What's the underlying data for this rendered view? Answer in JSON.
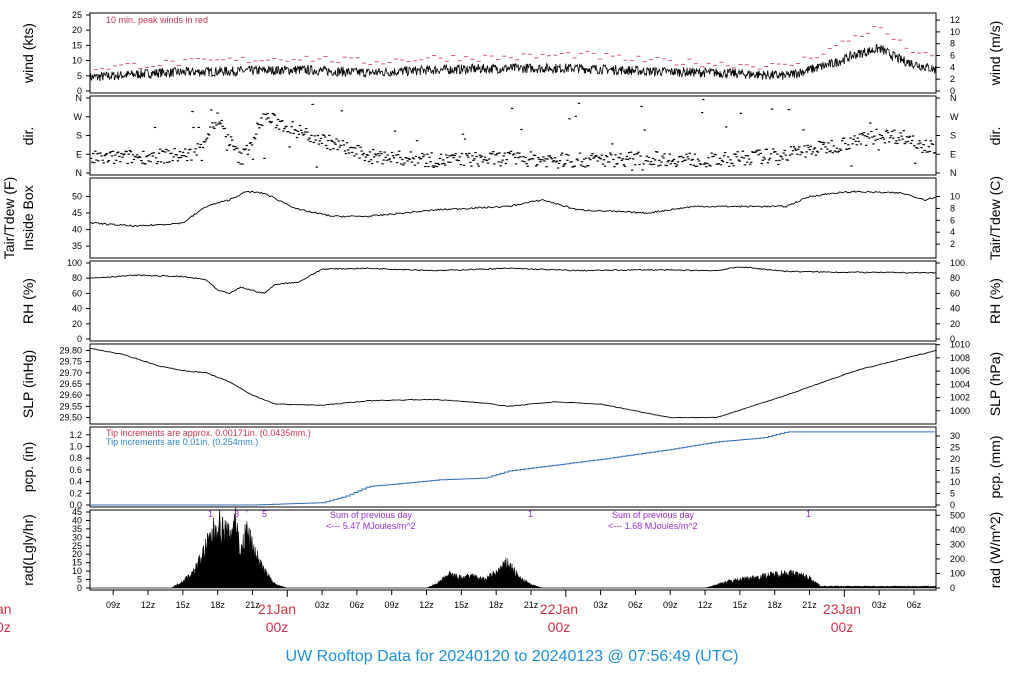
{
  "title": "UW Rooftop Data for 20240120  to  20240123 @ 07:56:49  (UTC)",
  "colors": {
    "peak": "#cc3355",
    "tip_old": "#cc3355",
    "tip_new": "#2e86c1",
    "rain_line": "#2e6fb8",
    "solar": "#9b30d0",
    "day": "#cc3344",
    "title": "#1e90d8"
  },
  "time_axis": {
    "ticks": [
      "09z",
      "12z",
      "15z",
      "18z",
      "21z",
      "03z",
      "06z",
      "09z",
      "12z",
      "15z",
      "18z",
      "21z",
      "03z",
      "06z",
      "09z",
      "12z",
      "15z",
      "18z",
      "21z",
      "03z",
      "06z"
    ],
    "days": [
      {
        "label": "21Jan",
        "sub": "00z"
      },
      {
        "label": "22Jan",
        "sub": "00z"
      },
      {
        "label": "23Jan",
        "sub": "00z"
      }
    ],
    "left_edge_fragments": [
      "an",
      "0z"
    ]
  },
  "panels": {
    "wind": {
      "left_label": "wind (kts)",
      "right_label": "wind (m/s)",
      "left_ticks": [
        "0",
        "5",
        "10",
        "15",
        "20",
        "25"
      ],
      "right_ticks": [
        "0",
        "2",
        "4",
        "6",
        "8",
        "10",
        "12"
      ],
      "note": "10 min. peak winds in red"
    },
    "dir": {
      "left_label": "dir.",
      "right_label": "dir.",
      "ticks": [
        "N",
        "E",
        "S",
        "W",
        "N"
      ]
    },
    "temp": {
      "left_label_1": "Tair/Tdew (F)",
      "left_label_2": "Inside Box",
      "right_label": "Tair/Tdew (C)",
      "left_ticks": [
        "35",
        "40",
        "45",
        "50"
      ],
      "right_ticks": [
        "2",
        "4",
        "6",
        "8",
        "10"
      ]
    },
    "rh": {
      "left_label": "RH (%)",
      "right_label": "RH (%)",
      "ticks": [
        "0",
        "20",
        "40",
        "60",
        "80",
        "100"
      ]
    },
    "slp": {
      "left_label": "SLP (inHg)",
      "right_label": "SLP (hPa)",
      "left_ticks": [
        "29.50",
        "29.55",
        "29.60",
        "29.65",
        "29.70",
        "29.75",
        "29.80"
      ],
      "right_ticks": [
        "1000",
        "1002",
        "1004",
        "1006",
        "1008",
        "1010"
      ]
    },
    "pcp": {
      "left_label": "pcp. (in)",
      "right_label": "pcp. (mm)",
      "left_ticks": [
        "0.0",
        "0.2",
        "0.4",
        "0.6",
        "0.8",
        "1.0",
        "1.2"
      ],
      "right_ticks": [
        "0",
        "5",
        "10",
        "15",
        "20",
        "25",
        "30"
      ],
      "note1": "Tip increments are approx. 0.00171in. (0.0435mm.)",
      "note2": "Tip increments are 0.01in. (0.254mm.)"
    },
    "rad": {
      "left_label": "rad(Lgly/hr)",
      "right_label": "rad (W/m^2)",
      "left_ticks": [
        "0",
        "5",
        "10",
        "15",
        "20",
        "25",
        "30",
        "35",
        "40",
        "45"
      ],
      "right_ticks": [
        "0",
        "100",
        "200",
        "300",
        "400",
        "500"
      ],
      "day_sum_title": "Sum of previous day",
      "day_sums": [
        "<--- 5.47 MJoules/m^2",
        "<--- 1.68 MJoules/m^2"
      ],
      "marks": [
        "1",
        "'",
        "3",
        "'",
        "5",
        "1",
        "1"
      ]
    }
  },
  "chart_data": {
    "type": "line",
    "x_unit": "hours since 20240120 07z",
    "x_range": [
      0,
      72.9
    ],
    "series": [
      {
        "name": "wind",
        "unit": "kts",
        "ylim": [
          0,
          25
        ],
        "x": [
          0,
          6,
          12,
          18,
          24,
          30,
          36,
          42,
          48,
          54,
          60,
          64,
          66,
          68,
          70,
          72.9
        ],
        "y": [
          4.5,
          6,
          6.5,
          7,
          6,
          7,
          7.5,
          7.5,
          6.5,
          6,
          5,
          9,
          12,
          14,
          10,
          7
        ]
      },
      {
        "name": "wind peak",
        "unit": "kts",
        "ylim": [
          0,
          25
        ],
        "x": [
          0,
          6,
          12,
          18,
          24,
          30,
          36,
          42,
          48,
          54,
          60,
          64,
          66,
          68,
          70,
          72.9
        ],
        "y": [
          7.5,
          9,
          10,
          11,
          9.5,
          11,
          11,
          12,
          10,
          9,
          8,
          14,
          18,
          21,
          15,
          10
        ]
      },
      {
        "name": "dir",
        "unit": "deg",
        "ylim": [
          0,
          360
        ],
        "x": [
          0,
          6,
          9,
          11,
          13,
          15,
          18,
          24,
          30,
          36,
          42,
          48,
          54,
          60,
          64,
          68,
          70,
          72.9
        ],
        "y": [
          70,
          80,
          90,
          260,
          60,
          270,
          200,
          80,
          60,
          70,
          60,
          70,
          60,
          90,
          130,
          180,
          175,
          120
        ]
      },
      {
        "name": "Tair",
        "unit": "F",
        "ylim": [
          32,
          55
        ],
        "x": [
          0,
          4,
          8,
          10,
          12,
          13.5,
          15,
          18,
          21,
          24,
          30,
          36,
          39,
          42,
          48,
          52,
          60,
          62,
          64,
          66,
          70,
          72,
          72.9
        ],
        "y": [
          42,
          41,
          42,
          47,
          49,
          51.5,
          51,
          46,
          44,
          44,
          46,
          47,
          49,
          46,
          45,
          47,
          47,
          50,
          51,
          51.5,
          51,
          49,
          50
        ]
      },
      {
        "name": "RH",
        "unit": "%",
        "ylim": [
          0,
          100
        ],
        "x": [
          0,
          4,
          8,
          10,
          11,
          12,
          13,
          15,
          16,
          18,
          20,
          24,
          30,
          36,
          42,
          48,
          54,
          56,
          60,
          64,
          72.9
        ],
        "y": [
          80,
          84,
          82,
          78,
          64,
          60,
          68,
          60,
          72,
          75,
          92,
          93,
          90,
          93,
          90,
          91,
          90,
          95,
          89,
          88,
          87
        ]
      },
      {
        "name": "SLP",
        "unit": "inHg",
        "ylim": [
          29.48,
          29.82
        ],
        "x": [
          0,
          3,
          6,
          8,
          10,
          12,
          14,
          16,
          20,
          24,
          28,
          30,
          34,
          36,
          40,
          44,
          48,
          50,
          54,
          60,
          66,
          72.9
        ],
        "y": [
          29.81,
          29.78,
          29.73,
          29.71,
          29.7,
          29.66,
          29.6,
          29.56,
          29.555,
          29.575,
          29.58,
          29.58,
          29.565,
          29.55,
          29.57,
          29.56,
          29.52,
          29.5,
          29.5,
          29.6,
          29.71,
          29.8
        ]
      },
      {
        "name": "pcp",
        "unit": "in",
        "ylim": [
          0,
          1.3
        ],
        "x": [
          0,
          14,
          20,
          22,
          24,
          26,
          30,
          34,
          36,
          40,
          44,
          50,
          54,
          58,
          60,
          72.9
        ],
        "y": [
          0,
          0,
          0.04,
          0.15,
          0.32,
          0.35,
          0.43,
          0.46,
          0.58,
          0.68,
          0.78,
          0.95,
          1.08,
          1.15,
          1.25,
          1.25
        ]
      },
      {
        "name": "rad",
        "unit": "Lgly/hr",
        "ylim": [
          0,
          45
        ],
        "x": [
          7,
          8,
          9,
          10,
          11,
          12,
          12.5,
          13,
          13.5,
          14,
          15,
          16,
          17,
          17.5,
          29,
          30,
          31,
          32,
          33,
          34,
          35,
          36,
          37,
          38,
          39,
          53,
          54,
          55,
          56,
          57,
          58,
          59,
          60,
          61,
          62,
          63
        ],
        "y": [
          0,
          4,
          10,
          24,
          38,
          30,
          42,
          20,
          35,
          24,
          10,
          2,
          0,
          0,
          0,
          3,
          8,
          6,
          7,
          5,
          9,
          15,
          6,
          2,
          0,
          0,
          2,
          4,
          5,
          6,
          7,
          8,
          9,
          8,
          6,
          1
        ]
      }
    ]
  }
}
